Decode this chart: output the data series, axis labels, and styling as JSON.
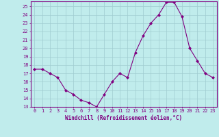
{
  "x": [
    0,
    1,
    2,
    3,
    4,
    5,
    6,
    7,
    8,
    9,
    10,
    11,
    12,
    13,
    14,
    15,
    16,
    17,
    18,
    19,
    20,
    21,
    22,
    23
  ],
  "y": [
    17.5,
    17.5,
    17.0,
    16.5,
    15.0,
    14.5,
    13.8,
    13.5,
    13.0,
    14.5,
    16.0,
    17.0,
    16.5,
    19.5,
    21.5,
    23.0,
    24.0,
    25.5,
    25.5,
    23.8,
    20.0,
    18.5,
    17.0,
    16.5
  ],
  "line_color": "#800080",
  "marker": "D",
  "marker_size": 2.0,
  "bg_color": "#c0ecec",
  "grid_color": "#a0ccd0",
  "xlabel": "Windchill (Refroidissement éolien,°C)",
  "ylim": [
    13,
    25.6
  ],
  "xlim": [
    -0.5,
    23.5
  ],
  "yticks": [
    13,
    14,
    15,
    16,
    17,
    18,
    19,
    20,
    21,
    22,
    23,
    24,
    25
  ],
  "xticks": [
    0,
    1,
    2,
    3,
    4,
    5,
    6,
    7,
    8,
    9,
    10,
    11,
    12,
    13,
    14,
    15,
    16,
    17,
    18,
    19,
    20,
    21,
    22,
    23
  ],
  "spine_color": "#800080",
  "tick_color": "#800080",
  "label_color": "#800080",
  "tick_fontsize": 5.0,
  "xlabel_fontsize": 5.5
}
